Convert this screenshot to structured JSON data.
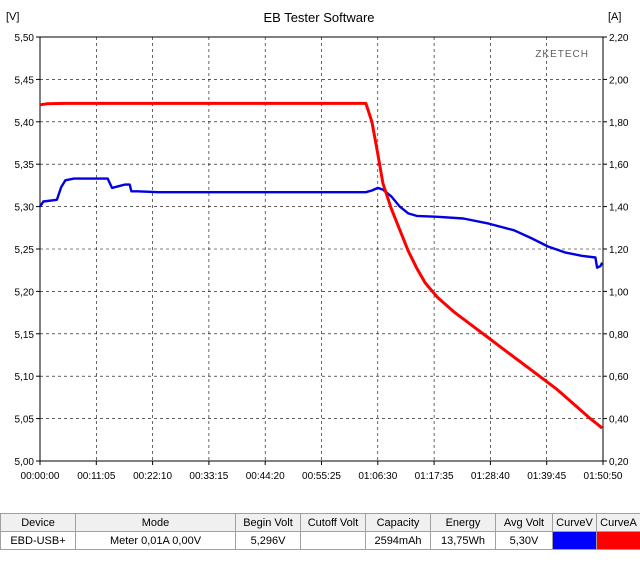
{
  "window": {
    "title": "EB Tester Software",
    "watermark": "ZKETECH"
  },
  "chart_data": {
    "type": "line",
    "title": "EB Tester Software",
    "y_left_unit": "[V]",
    "y_right_unit": "[A]",
    "y_left_range": [
      5.0,
      5.5
    ],
    "y_right_range": [
      0.2,
      2.2
    ],
    "x_range_seconds": [
      0,
      6650
    ],
    "x_ticks": [
      "00:00:00",
      "00:11:05",
      "00:22:10",
      "00:33:15",
      "00:44:20",
      "00:55:25",
      "01:06:30",
      "01:17:35",
      "01:28:40",
      "01:39:45",
      "01:50:50"
    ],
    "y_left_ticks": [
      "5,00",
      "5,05",
      "5,10",
      "5,15",
      "5,20",
      "5,25",
      "5,30",
      "5,35",
      "5,40",
      "5,45",
      "5,50"
    ],
    "y_right_ticks": [
      "0,20",
      "0,40",
      "0,60",
      "0,80",
      "1,00",
      "1,20",
      "1,40",
      "1,60",
      "1,80",
      "2,00",
      "2,20"
    ],
    "grid": true,
    "series": [
      {
        "axis": "left",
        "color": "#0000e0",
        "points": [
          [
            0,
            5.3
          ],
          [
            40,
            5.306
          ],
          [
            200,
            5.308
          ],
          [
            250,
            5.323
          ],
          [
            300,
            5.331
          ],
          [
            400,
            5.333
          ],
          [
            600,
            5.333
          ],
          [
            800,
            5.333
          ],
          [
            850,
            5.322
          ],
          [
            930,
            5.324
          ],
          [
            1000,
            5.326
          ],
          [
            1060,
            5.326
          ],
          [
            1080,
            5.318
          ],
          [
            1150,
            5.318
          ],
          [
            1400,
            5.317
          ],
          [
            2000,
            5.317
          ],
          [
            2700,
            5.317
          ],
          [
            3400,
            5.317
          ],
          [
            3850,
            5.317
          ],
          [
            3920,
            5.319
          ],
          [
            3990,
            5.322
          ],
          [
            4050,
            5.32
          ],
          [
            4150,
            5.312
          ],
          [
            4250,
            5.3
          ],
          [
            4350,
            5.292
          ],
          [
            4450,
            5.289
          ],
          [
            4700,
            5.288
          ],
          [
            5000,
            5.286
          ],
          [
            5300,
            5.28
          ],
          [
            5600,
            5.272
          ],
          [
            5800,
            5.263
          ],
          [
            6000,
            5.253
          ],
          [
            6200,
            5.246
          ],
          [
            6400,
            5.242
          ],
          [
            6560,
            5.24
          ],
          [
            6580,
            5.228
          ],
          [
            6620,
            5.23
          ],
          [
            6640,
            5.234
          ]
        ]
      },
      {
        "axis": "right",
        "color": "#ff0000",
        "points": [
          [
            0,
            1.88
          ],
          [
            80,
            1.885
          ],
          [
            300,
            1.887
          ],
          [
            1000,
            1.887
          ],
          [
            2000,
            1.887
          ],
          [
            3000,
            1.887
          ],
          [
            3850,
            1.887
          ],
          [
            3920,
            1.8
          ],
          [
            3980,
            1.67
          ],
          [
            4050,
            1.51
          ],
          [
            4150,
            1.39
          ],
          [
            4250,
            1.29
          ],
          [
            4350,
            1.19
          ],
          [
            4450,
            1.11
          ],
          [
            4550,
            1.04
          ],
          [
            4700,
            0.97
          ],
          [
            4900,
            0.9
          ],
          [
            5100,
            0.84
          ],
          [
            5300,
            0.78
          ],
          [
            5500,
            0.72
          ],
          [
            5700,
            0.66
          ],
          [
            5900,
            0.6
          ],
          [
            6100,
            0.54
          ],
          [
            6300,
            0.47
          ],
          [
            6500,
            0.4
          ],
          [
            6640,
            0.355
          ]
        ]
      }
    ]
  },
  "table": {
    "headers": [
      "Device",
      "Mode",
      "Begin Volt",
      "Cutoff Volt",
      "Capacity",
      "Energy",
      "Avg Volt",
      "CurveV",
      "CurveA"
    ],
    "row": {
      "device": "EBD-USB+",
      "mode": "Meter  0,01A  0,00V",
      "begin_volt": "5,296V",
      "cutoff_volt": "",
      "capacity": "2594mAh",
      "energy": "13,75Wh",
      "avg_volt": "5,30V",
      "curve_v_color": "#0000ff",
      "curve_a_color": "#ff0000"
    }
  }
}
